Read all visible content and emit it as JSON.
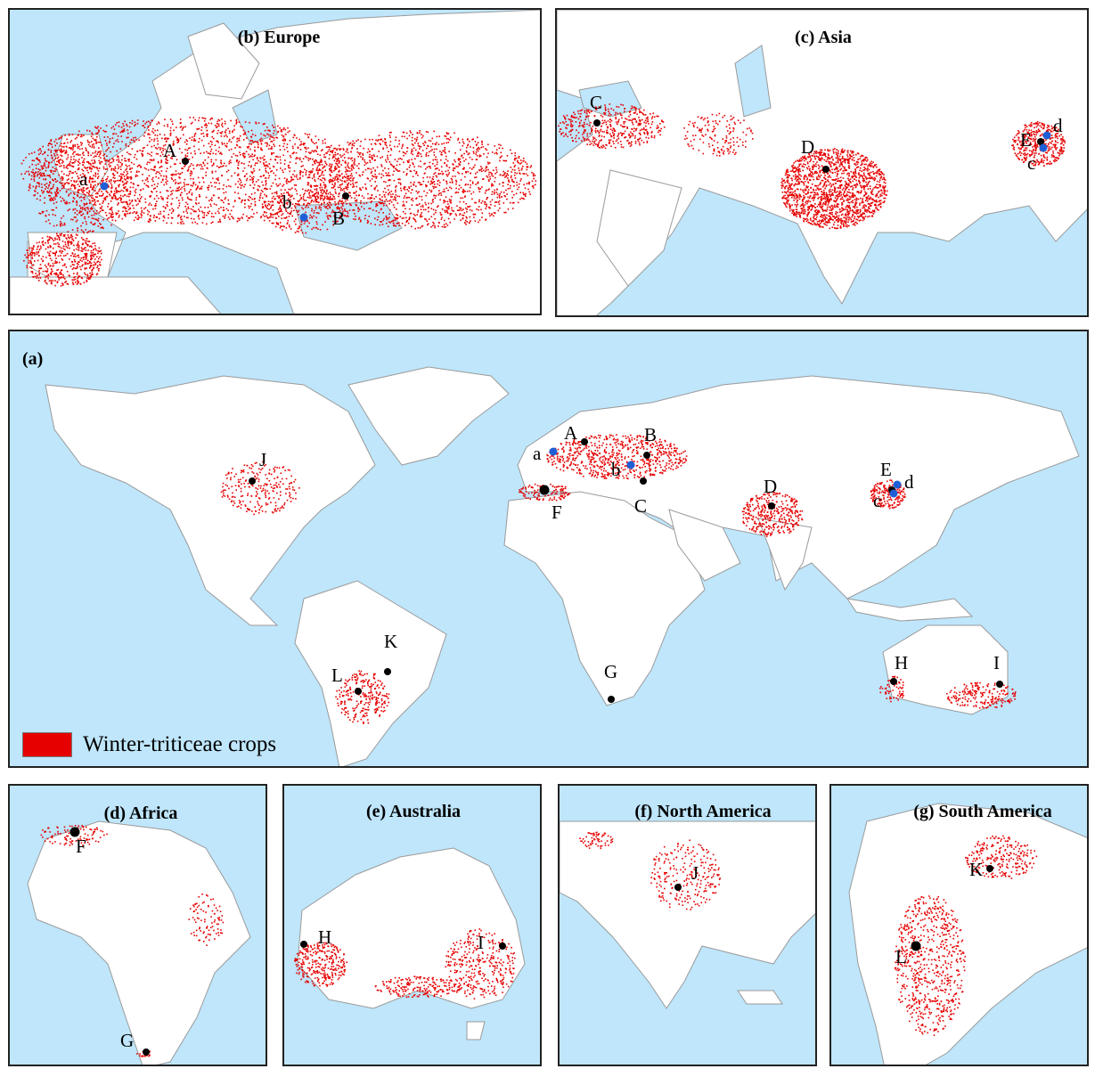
{
  "colors": {
    "ocean": "#bfe6fb",
    "land": "#ffffff",
    "crop": "#e60000",
    "site": "#000000",
    "site_alt": "#1f5fd6"
  },
  "legend": {
    "label": "Winter-triticeae crops"
  },
  "panels": {
    "europe": {
      "title": "(b) Europe"
    },
    "asia": {
      "title": "(c) Asia"
    },
    "world": {
      "title": "(a)"
    },
    "africa": {
      "title": "(d) Africa"
    },
    "australia": {
      "title": "(e) Australia"
    },
    "north_america": {
      "title": "(f) North America"
    },
    "south_america": {
      "title": "(g) South America"
    }
  },
  "site_labels": {
    "A": "A",
    "B": "B",
    "C": "C",
    "D": "D",
    "E": "E",
    "F": "F",
    "G": "G",
    "H": "H",
    "I": "I",
    "J": "J",
    "K": "K",
    "L": "L",
    "a": "a",
    "b": "b",
    "c": "c",
    "d": "d"
  }
}
